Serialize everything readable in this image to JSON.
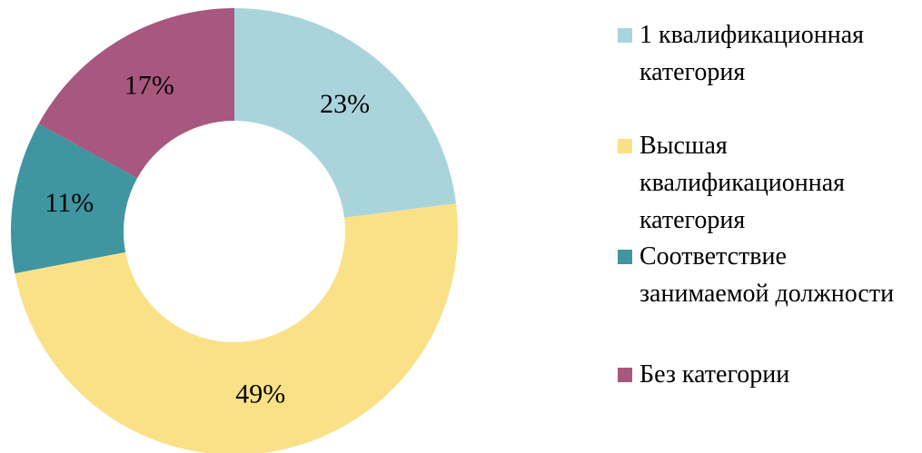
{
  "chart_data": {
    "type": "donut",
    "categories": [
      "1 квалификационная категория",
      "Высшая квалификационная категория",
      "Соответствие занимаемой должности",
      "Без категории"
    ],
    "values": [
      23,
      49,
      11,
      17
    ],
    "value_labels": [
      "23%",
      "49%",
      "11%",
      "17%"
    ],
    "colors": [
      "#a9d4dc",
      "#fae187",
      "#3f95a0",
      "#a8577e"
    ],
    "legend": "right"
  }
}
